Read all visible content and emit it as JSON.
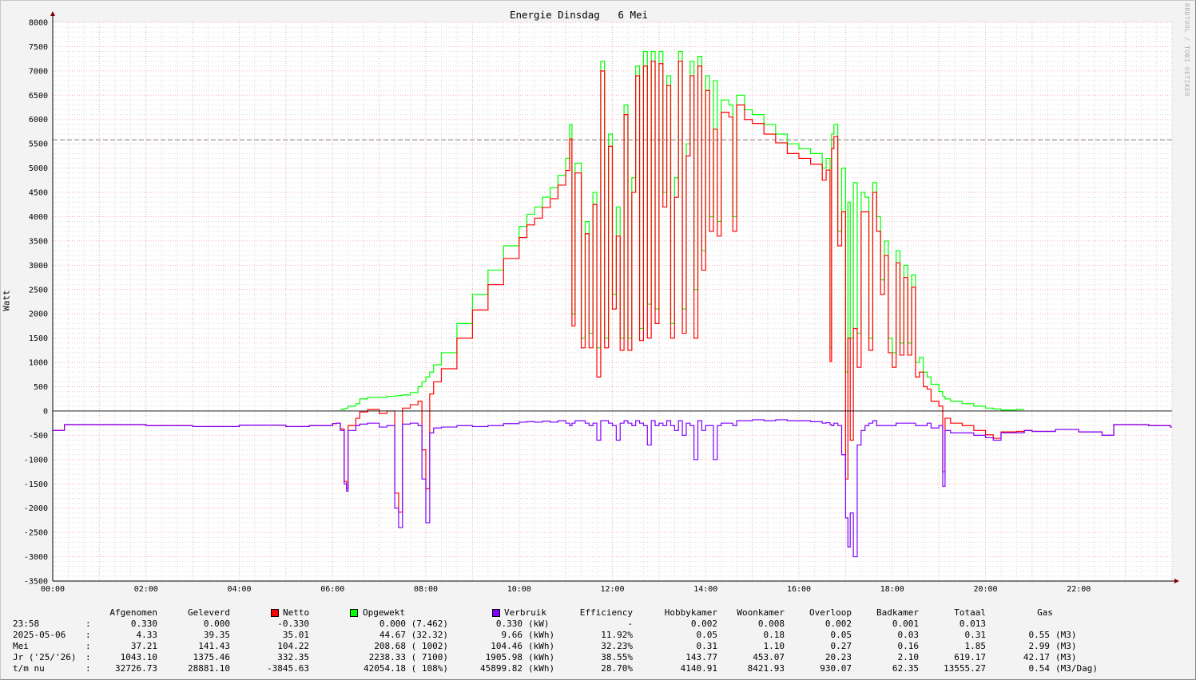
{
  "title": "Energie Dinsdag   6 Mei",
  "watermark": "RRDTOOL / TOBI OETIKER",
  "colors": {
    "netto": "#ff0000",
    "opgewekt": "#00ff00",
    "verbruik": "#7f00ff",
    "reference_line": "#808080"
  },
  "chart_data": {
    "type": "line",
    "title": "Energie Dinsdag   6 Mei",
    "xlabel": "",
    "ylabel": "Watt",
    "ylim": [
      -3500,
      8000
    ],
    "xlim": [
      "00:00",
      "24:00"
    ],
    "grid": true,
    "step": true,
    "y_ticks": [
      "-3500",
      "-3000",
      "-2500",
      "-2000",
      "-1500",
      "-1000",
      "-500",
      "0",
      "500",
      "1000",
      "1500",
      "2000",
      "2500",
      "3000",
      "3500",
      "4000",
      "4500",
      "5000",
      "5500",
      "6000",
      "6500",
      "7000",
      "7500",
      "8000"
    ],
    "x_ticks": [
      "00:00",
      "02:00",
      "04:00",
      "06:00",
      "08:00",
      "10:00",
      "12:00",
      "14:00",
      "16:00",
      "18:00",
      "20:00",
      "22:00"
    ],
    "reference_line": 5580,
    "x": [
      "00:00",
      "00:15",
      "01:00",
      "02:00",
      "03:00",
      "04:00",
      "05:00",
      "05:30",
      "06:00",
      "06:05",
      "06:10",
      "06:15",
      "06:18",
      "06:20",
      "06:30",
      "06:35",
      "06:45",
      "07:00",
      "07:10",
      "07:20",
      "07:25",
      "07:30",
      "07:40",
      "07:50",
      "07:55",
      "08:00",
      "08:05",
      "08:10",
      "08:20",
      "08:40",
      "09:00",
      "09:20",
      "09:40",
      "10:00",
      "10:10",
      "10:20",
      "10:30",
      "10:40",
      "10:50",
      "11:00",
      "11:05",
      "11:08",
      "11:12",
      "11:20",
      "11:25",
      "11:30",
      "11:35",
      "11:40",
      "11:45",
      "11:50",
      "11:55",
      "12:00",
      "12:05",
      "12:10",
      "12:15",
      "12:20",
      "12:25",
      "12:30",
      "12:35",
      "12:40",
      "12:45",
      "12:50",
      "12:55",
      "13:00",
      "13:05",
      "13:10",
      "13:15",
      "13:20",
      "13:25",
      "13:30",
      "13:35",
      "13:40",
      "13:45",
      "13:50",
      "13:55",
      "14:00",
      "14:05",
      "14:10",
      "14:15",
      "14:20",
      "14:30",
      "14:35",
      "14:40",
      "14:50",
      "15:00",
      "15:15",
      "15:30",
      "15:45",
      "16:00",
      "16:15",
      "16:30",
      "16:35",
      "16:40",
      "16:42",
      "16:45",
      "16:50",
      "16:55",
      "17:00",
      "17:03",
      "17:06",
      "17:10",
      "17:15",
      "17:20",
      "17:25",
      "17:30",
      "17:35",
      "17:40",
      "17:45",
      "17:50",
      "17:55",
      "18:00",
      "18:05",
      "18:10",
      "18:15",
      "18:20",
      "18:25",
      "18:30",
      "18:35",
      "18:40",
      "18:45",
      "18:50",
      "19:00",
      "19:05",
      "19:08",
      "19:15",
      "19:30",
      "19:45",
      "20:00",
      "20:10",
      "20:20",
      "20:40",
      "20:50",
      "21:00",
      "21:30",
      "22:00",
      "22:30",
      "22:45",
      "23:00",
      "23:30",
      "23:58"
    ],
    "series": [
      {
        "name": "Opgewekt",
        "color": "#00ff00",
        "values": [
          null,
          null,
          null,
          null,
          null,
          null,
          null,
          null,
          null,
          null,
          30,
          50,
          60,
          100,
          150,
          250,
          280,
          280,
          300,
          310,
          320,
          330,
          380,
          500,
          600,
          700,
          800,
          950,
          1200,
          1800,
          2400,
          2900,
          3400,
          3800,
          4050,
          4200,
          4400,
          4600,
          4850,
          5200,
          5900,
          2000,
          5100,
          1500,
          3900,
          1600,
          4500,
          1300,
          7200,
          1500,
          5700,
          2400,
          4200,
          1500,
          6300,
          1500,
          4800,
          7100,
          1700,
          7400,
          2200,
          7400,
          2100,
          7400,
          4500,
          6900,
          1800,
          4800,
          7400,
          2100,
          5500,
          7200,
          2500,
          7300,
          3300,
          6900,
          4000,
          6800,
          3900,
          6400,
          6300,
          4000,
          6500,
          6200,
          6100,
          5900,
          5700,
          5500,
          5400,
          5300,
          5000,
          5200,
          1300,
          5700,
          5900,
          3700,
          5000,
          800,
          4300,
          1500,
          4700,
          1600,
          4500,
          4400,
          1500,
          4700,
          4000,
          2700,
          3500,
          1500,
          1200,
          3300,
          1400,
          3000,
          1400,
          2800,
          1000,
          1100,
          800,
          700,
          550,
          400,
          300,
          250,
          200,
          150,
          100,
          60,
          40,
          20,
          30,
          null,
          null,
          null,
          null,
          null,
          null,
          null,
          null,
          null
        ]
      },
      {
        "name": "Netto",
        "color": "#ff0000",
        "values": [
          -400,
          -280,
          -280,
          -300,
          -320,
          -290,
          -320,
          -300,
          -260,
          -250,
          -370,
          -1450,
          -1590,
          -300,
          -150,
          -20,
          30,
          -50,
          0,
          -1690,
          -2080,
          60,
          130,
          200,
          -800,
          -1600,
          350,
          600,
          870,
          1500,
          2080,
          2600,
          3140,
          3570,
          3830,
          3970,
          4190,
          4370,
          4650,
          4950,
          5600,
          1750,
          4900,
          1300,
          3650,
          1300,
          4250,
          700,
          7000,
          1300,
          5450,
          2100,
          3600,
          1250,
          6100,
          1250,
          4500,
          6900,
          1450,
          7100,
          1500,
          7200,
          1800,
          7150,
          4200,
          6700,
          1500,
          4400,
          7200,
          1600,
          5250,
          6900,
          1500,
          7100,
          2900,
          6600,
          3700,
          5800,
          3600,
          6150,
          6050,
          3700,
          6300,
          6000,
          5920,
          5700,
          5520,
          5300,
          5200,
          5080,
          4750,
          4960,
          1020,
          5400,
          5650,
          3400,
          4100,
          -1400,
          1500,
          -600,
          1700,
          900,
          4100,
          4100,
          1250,
          4500,
          3700,
          2400,
          3200,
          1200,
          900,
          3050,
          1150,
          2750,
          1150,
          2550,
          700,
          800,
          500,
          450,
          200,
          100,
          -1250,
          -150,
          -250,
          -300,
          -400,
          -490,
          -560,
          -430,
          -420,
          -400,
          -420,
          -380,
          -430,
          -500,
          -280,
          -280,
          -300,
          -330
        ]
      },
      {
        "name": "Verbruik",
        "color": "#7f00ff",
        "values": [
          -400,
          -280,
          -280,
          -300,
          -320,
          -290,
          -320,
          -300,
          -260,
          -250,
          -400,
          -1500,
          -1650,
          -400,
          -300,
          -270,
          -250,
          -330,
          -300,
          -2000,
          -2400,
          -270,
          -250,
          -300,
          -1400,
          -2300,
          -450,
          -350,
          -330,
          -300,
          -320,
          -300,
          -260,
          -230,
          -220,
          -230,
          -210,
          -230,
          -200,
          -250,
          -300,
          -250,
          -200,
          -200,
          -250,
          -300,
          -250,
          -600,
          -200,
          -200,
          -250,
          -300,
          -600,
          -250,
          -200,
          -250,
          -300,
          -200,
          -250,
          -300,
          -700,
          -200,
          -300,
          -250,
          -300,
          -200,
          -300,
          -400,
          -200,
          -500,
          -250,
          -300,
          -1000,
          -200,
          -400,
          -300,
          -300,
          -1000,
          -300,
          -250,
          -250,
          -300,
          -200,
          -200,
          -180,
          -200,
          -180,
          -200,
          -200,
          -220,
          -250,
          -240,
          -280,
          -300,
          -250,
          -300,
          -900,
          -2200,
          -2800,
          -2100,
          -3000,
          -700,
          -400,
          -300,
          -250,
          -200,
          -300,
          -300,
          -300,
          -300,
          -300,
          -250,
          -250,
          -250,
          -250,
          -250,
          -300,
          -300,
          -300,
          -250,
          -350,
          -300,
          -1550,
          -400,
          -450,
          -450,
          -500,
          -550,
          -600,
          -450,
          -450,
          -400,
          -420,
          -380,
          -430,
          -500,
          -280,
          -280,
          -300,
          -330
        ]
      }
    ]
  },
  "table": {
    "headers": {
      "afgenomen": "Afgenomen",
      "geleverd": "Geleverd",
      "netto": "Netto",
      "opgewekt": "Opgewekt",
      "verbruik": "Verbruik",
      "efficiency": "Efficiency",
      "hobbykamer": "Hobbykamer",
      "woonkamer": "Woonkamer",
      "overloop": "Overloop",
      "badkamer": "Badkamer",
      "totaal": "Totaal",
      "gas": "Gas"
    },
    "rows": [
      {
        "label": "23:58",
        "sep": ":",
        "afgenomen": "0.330",
        "geleverd": "0.000",
        "netto": "-0.330",
        "opgewekt": "0.000 (7.462)",
        "verbruik": "0.330",
        "verbruik_unit": "(kW)",
        "efficiency": "-",
        "hobbykamer": "0.002",
        "woonkamer": "0.008",
        "overloop": "0.002",
        "badkamer": "0.001",
        "totaal": "0.013",
        "gas": "",
        "gas_unit": ""
      },
      {
        "label": "2025-05-06",
        "sep": ":",
        "afgenomen": "4.33",
        "geleverd": "39.35",
        "netto": "35.01",
        "opgewekt": "44.67 (32.32)",
        "verbruik": "9.66",
        "verbruik_unit": "(kWh)",
        "efficiency": "11.92%",
        "hobbykamer": "0.05",
        "woonkamer": "0.18",
        "overloop": "0.05",
        "badkamer": "0.03",
        "totaal": "0.31",
        "gas": "0.55",
        "gas_unit": "(M3)"
      },
      {
        "label": "Mei",
        "sep": ":",
        "afgenomen": "37.21",
        "geleverd": "141.43",
        "netto": "104.22",
        "opgewekt": "208.68 ( 1002)",
        "verbruik": "104.46",
        "verbruik_unit": "(kWh)",
        "efficiency": "32.23%",
        "hobbykamer": "0.31",
        "woonkamer": "1.10",
        "overloop": "0.27",
        "badkamer": "0.16",
        "totaal": "1.85",
        "gas": "2.99",
        "gas_unit": "(M3)"
      },
      {
        "label": "Jr ('25/'26)",
        "sep": ":",
        "afgenomen": "1043.10",
        "geleverd": "1375.46",
        "netto": "332.35",
        "opgewekt": "2238.33 ( 7100)",
        "verbruik": "1905.98",
        "verbruik_unit": "(kWh)",
        "efficiency": "38.55%",
        "hobbykamer": "143.77",
        "woonkamer": "453.07",
        "overloop": "20.23",
        "badkamer": "2.10",
        "totaal": "619.17",
        "gas": "42.17",
        "gas_unit": "(M3)"
      },
      {
        "label": "t/m nu",
        "sep": ":",
        "afgenomen": "32726.73",
        "geleverd": "28881.10",
        "netto": "-3845.63",
        "opgewekt": "42054.18 ( 108%)",
        "verbruik": "45899.82",
        "verbruik_unit": "(kWh)",
        "efficiency": "28.70%",
        "hobbykamer": "4140.91",
        "woonkamer": "8421.93",
        "overloop": "930.07",
        "badkamer": "62.35",
        "totaal": "13555.27",
        "gas": "0.54",
        "gas_unit": "(M3/Dag)"
      }
    ]
  }
}
